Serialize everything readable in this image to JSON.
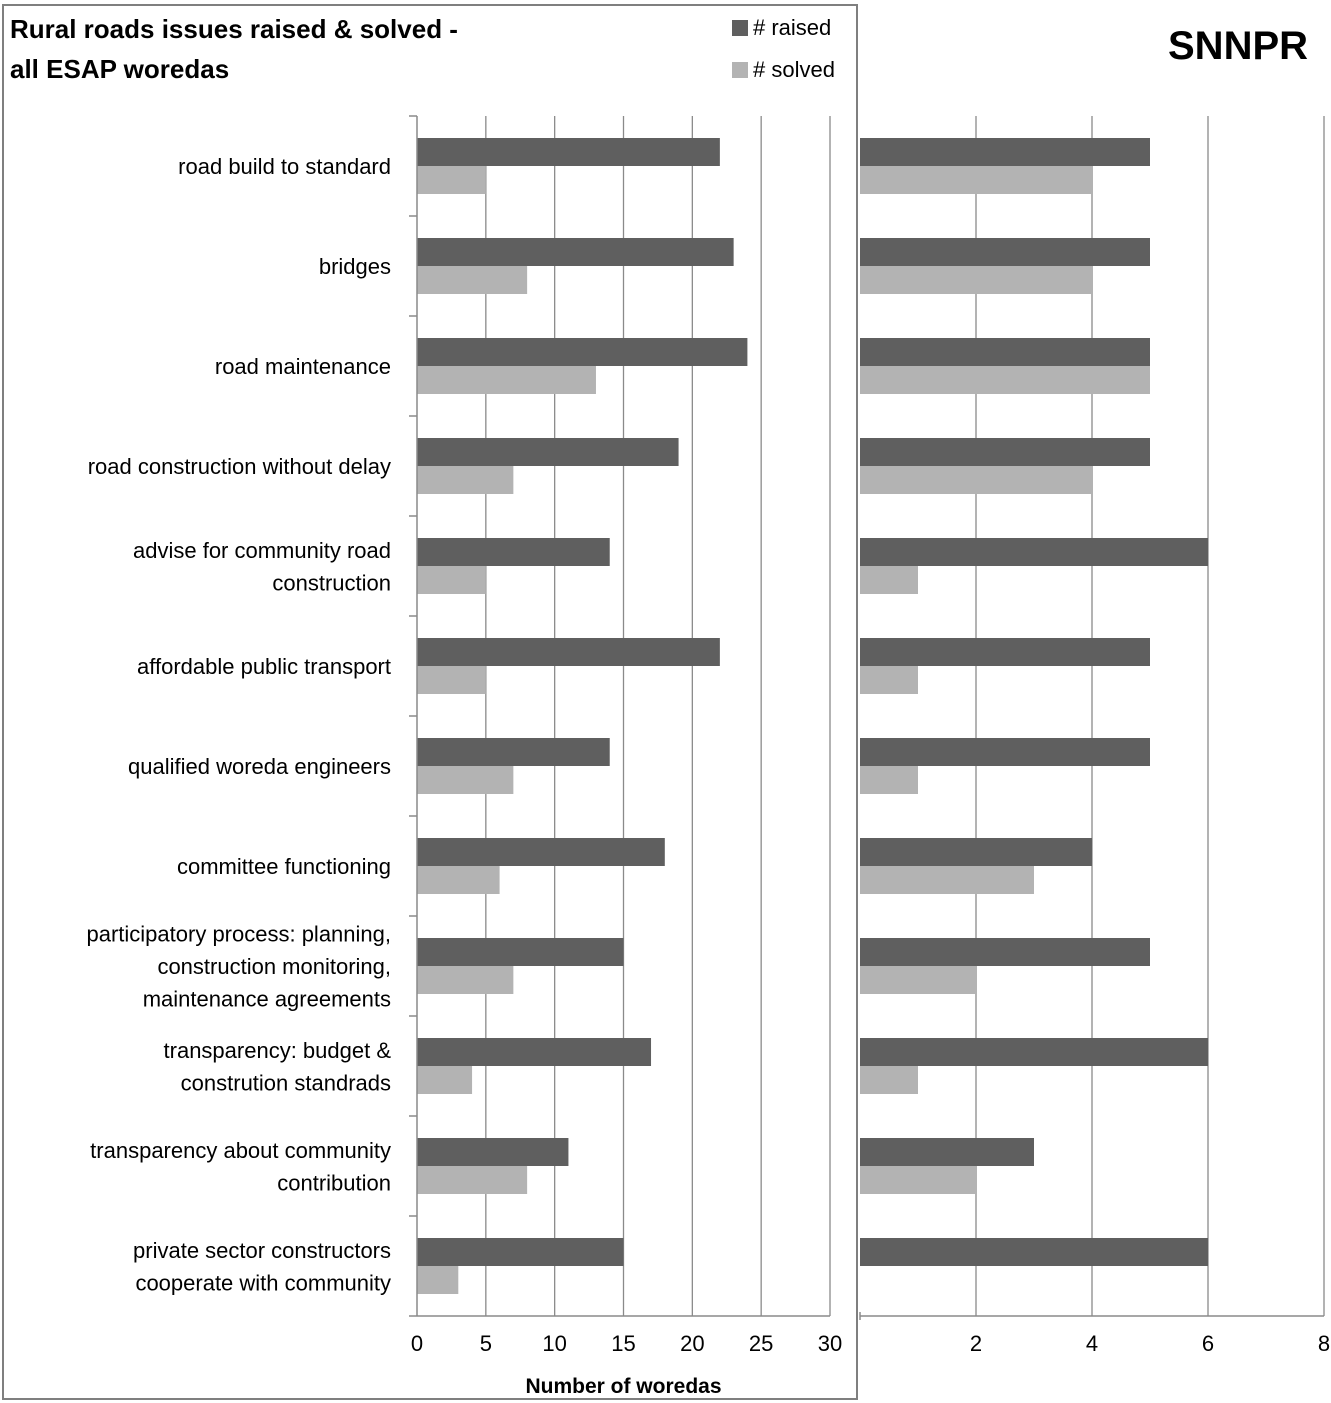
{
  "chart_data": [
    {
      "type": "bar",
      "orientation": "horizontal",
      "title": "Rural roads issues raised & solved - all ESAP woredas",
      "title_lines": [
        "Rural roads issues raised & solved -",
        "all ESAP woredas"
      ],
      "categories": [
        {
          "lines": [
            "road build to standard"
          ]
        },
        {
          "lines": [
            "bridges"
          ]
        },
        {
          "lines": [
            "road maintenance"
          ]
        },
        {
          "lines": [
            "road construction without delay"
          ]
        },
        {
          "lines": [
            "advise for community road",
            "construction"
          ]
        },
        {
          "lines": [
            "affordable public transport"
          ]
        },
        {
          "lines": [
            "qualified woreda engineers"
          ]
        },
        {
          "lines": [
            "committee functioning"
          ]
        },
        {
          "lines": [
            "participatory process: planning,",
            "construction monitoring,",
            "maintenance agreements"
          ]
        },
        {
          "lines": [
            "transparency: budget &",
            "constrution standrads"
          ]
        },
        {
          "lines": [
            "transparency about community",
            "contribution"
          ]
        },
        {
          "lines": [
            "private sector constructors",
            "cooperate with community"
          ]
        }
      ],
      "series": [
        {
          "name": "# raised",
          "color": "#5f5f5f",
          "values": [
            22,
            23,
            24,
            19,
            14,
            22,
            14,
            18,
            15,
            17,
            11,
            15
          ]
        },
        {
          "name": "# solved",
          "color": "#b3b3b3",
          "values": [
            5,
            8,
            13,
            7,
            5,
            5,
            7,
            6,
            7,
            4,
            8,
            3
          ]
        }
      ],
      "xlabel": "Number of woredas",
      "xlim": [
        0,
        30
      ],
      "xticks": [
        "0",
        "5",
        "10",
        "15",
        "20",
        "25",
        "30"
      ],
      "grid": "vertical",
      "legend": "top-right"
    },
    {
      "type": "bar",
      "orientation": "horizontal",
      "title": "SNNPR",
      "series": [
        {
          "name": "# raised",
          "color": "#5f5f5f",
          "values": [
            5,
            5,
            5,
            5,
            6,
            5,
            5,
            4,
            5,
            6,
            3,
            6
          ]
        },
        {
          "name": "# solved",
          "color": "#b3b3b3",
          "values": [
            4,
            4,
            5,
            4,
            1,
            1,
            1,
            3,
            2,
            1,
            2,
            0
          ]
        }
      ],
      "xlim": [
        0,
        8
      ],
      "xticks": [
        "",
        "2",
        "4",
        "6",
        "8"
      ],
      "grid": "vertical"
    }
  ]
}
